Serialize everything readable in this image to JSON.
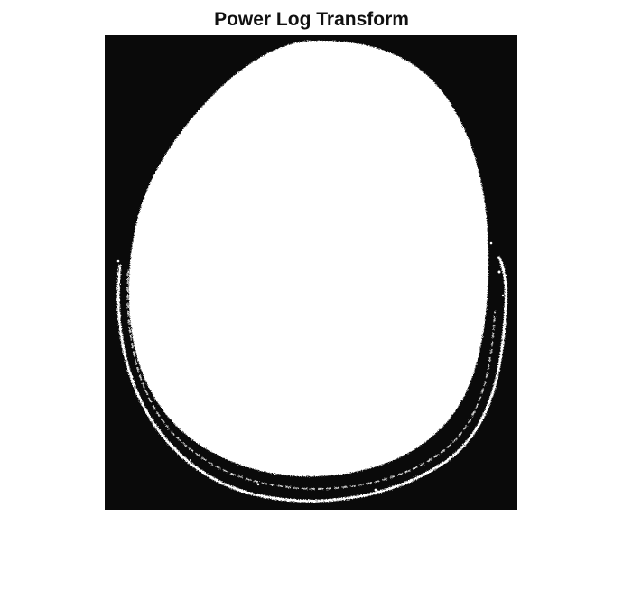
{
  "figure": {
    "title": "Power Log Transform"
  },
  "image": {
    "subject": "binary-head-ct-slice",
    "colors": {
      "background": "#0a0a0a",
      "foreground": "#ffffff",
      "page": "#ffffff"
    }
  }
}
